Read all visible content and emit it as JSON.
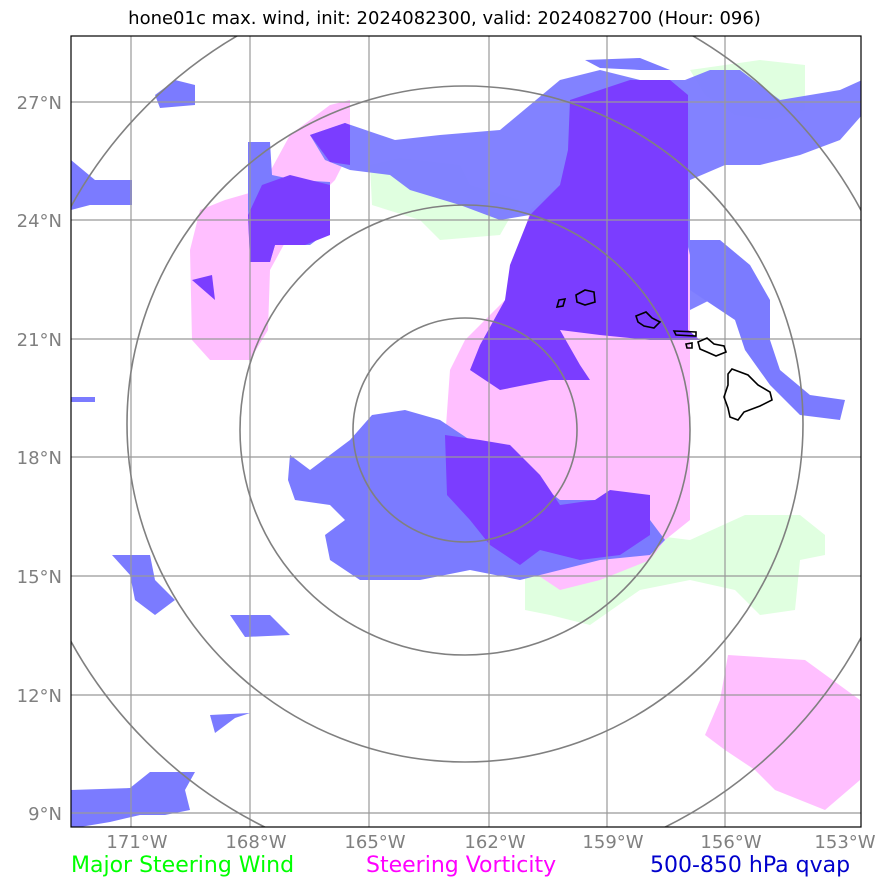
{
  "title": "hone01c max. wind, init: 2024082300, valid: 2024082700 (Hour: 096)",
  "axes": {
    "lat_labels": [
      "27°N",
      "24°N",
      "21°N",
      "18°N",
      "15°N",
      "12°N",
      "9°N"
    ],
    "lon_labels": [
      "171°W",
      "168°W",
      "165°W",
      "162°W",
      "159°W",
      "156°W",
      "153°W"
    ]
  },
  "legend": [
    {
      "label": "Major Steering Wind",
      "color": "#00ff00"
    },
    {
      "label": "Steering Vorticity",
      "color": "#ff00ff"
    },
    {
      "label": "500-850 hPa qvap",
      "color": "#0000cc"
    }
  ],
  "colors": {
    "steering_wind_fill": "#e0ffe0",
    "vorticity_fill": "#ffbfff",
    "qvap_fill": "#7b7bff",
    "overlap_fill": "#7b3dff",
    "grid": "#999999",
    "range_rings": "#808080",
    "coastline": "#000000"
  }
}
